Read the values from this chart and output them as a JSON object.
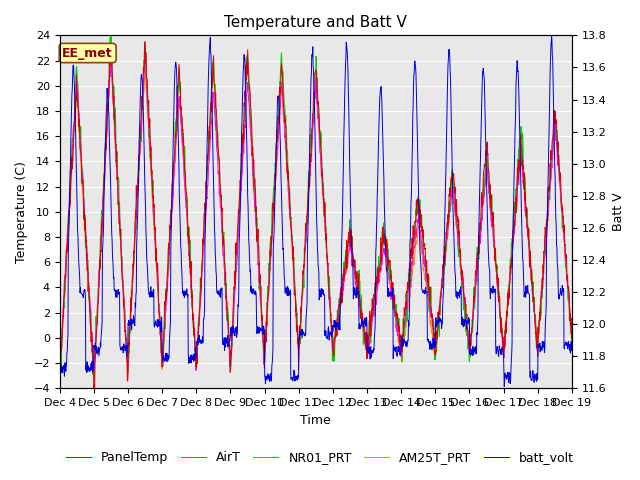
{
  "title": "Temperature and Batt V",
  "xlabel": "Time",
  "ylabel_left": "Temperature (C)",
  "ylabel_right": "Batt V",
  "ylim_left": [
    -4,
    24
  ],
  "ylim_right": [
    11.6,
    13.8
  ],
  "yticks_left": [
    -4,
    -2,
    0,
    2,
    4,
    6,
    8,
    10,
    12,
    14,
    16,
    18,
    20,
    22,
    24
  ],
  "yticks_right": [
    11.6,
    11.8,
    12.0,
    12.2,
    12.4,
    12.6,
    12.8,
    13.0,
    13.2,
    13.4,
    13.6,
    13.8
  ],
  "xticklabels": [
    "Dec 4",
    "Dec 5",
    "Dec 6",
    "Dec 7",
    "Dec 8",
    "Dec 9",
    "Dec 10",
    "Dec 11",
    "Dec 12",
    "Dec 13",
    "Dec 14",
    "Dec 15",
    "Dec 16",
    "Dec 17",
    "Dec 18",
    "Dec 19"
  ],
  "station_label": "EE_met",
  "legend_labels": [
    "PanelTemp",
    "AirT",
    "NR01_PRT",
    "AM25T_PRT",
    "batt_volt"
  ],
  "colors": {
    "PanelTemp": "#dd0000",
    "AirT": "#ff00ff",
    "NR01_PRT": "#00cc00",
    "AM25T_PRT": "#ff8800",
    "batt_volt": "#0000dd"
  },
  "background_color": "#e8e8e8",
  "fig_background": "#ffffff",
  "grid_color": "#ffffff",
  "title_fontsize": 11,
  "label_fontsize": 9,
  "tick_fontsize": 8,
  "legend_fontsize": 9,
  "n_days": 15,
  "n_per_day": 96
}
